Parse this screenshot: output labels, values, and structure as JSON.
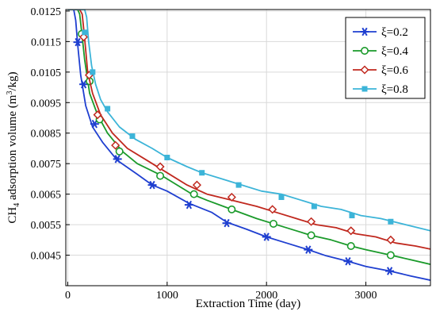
{
  "chart_data": {
    "type": "line",
    "title": "",
    "xlabel": "Extraction Time (day)",
    "ylabel": "CH4 adsorption volume (m3/kg)",
    "ylabel_parts": {
      "a": "CH",
      "sub": "4",
      "b": " adsorption volume (m",
      "sup": "3",
      "c": "/kg)"
    },
    "xlim": [
      -20,
      3650
    ],
    "ylim": [
      0.0035,
      0.01255
    ],
    "x_ticks": [
      0,
      1000,
      2000,
      3000
    ],
    "x_tick_labels": [
      "0",
      "1000",
      "2000",
      "3000"
    ],
    "y_ticks": [
      0.0045,
      0.0055,
      0.0065,
      0.0075,
      0.0085,
      0.0095,
      0.0105,
      0.0115,
      0.0125
    ],
    "y_tick_labels": [
      "0.0045",
      "0.0055",
      "0.0065",
      "0.0075",
      "0.0085",
      "0.0095",
      "0.0105",
      "0.0115",
      "0.0125"
    ],
    "grid": true,
    "legend_position": "top-right",
    "series": [
      {
        "name": "ξ=0.2",
        "color": "#1f3fd0",
        "marker": "star",
        "curve_x": [
          0,
          30,
          60,
          80,
          100,
          130,
          180,
          250,
          350,
          500,
          700,
          850,
          1000,
          1220,
          1450,
          1600,
          1800,
          2000,
          2200,
          2420,
          2600,
          2820,
          3000,
          3240,
          3450,
          3650
        ],
        "curve_y": [
          0.01255,
          0.01255,
          0.01255,
          0.0122,
          0.0114,
          0.0104,
          0.0094,
          0.0087,
          0.0082,
          0.0076,
          0.00715,
          0.0068,
          0.0066,
          0.0062,
          0.0059,
          0.00558,
          0.00535,
          0.0051,
          0.0049,
          0.00468,
          0.00448,
          0.0043,
          0.00413,
          0.00398,
          0.00382,
          0.00368
        ],
        "marker_x": [
          100,
          160,
          270,
          500,
          850,
          1220,
          1600,
          2000,
          2420,
          2820,
          3240
        ],
        "marker_y": [
          0.01148,
          0.0101,
          0.0088,
          0.00765,
          0.0068,
          0.00615,
          0.00555,
          0.0051,
          0.00468,
          0.0043,
          0.00398
        ]
      },
      {
        "name": "ξ=0.4",
        "color": "#1a9a2a",
        "marker": "circle",
        "curve_x": [
          0,
          60,
          100,
          120,
          140,
          170,
          220,
          300,
          400,
          550,
          700,
          950,
          1100,
          1250,
          1400,
          1650,
          1900,
          2050,
          2300,
          2450,
          2650,
          2850,
          3000,
          3250,
          3450,
          3650
        ],
        "curve_y": [
          0.01255,
          0.01255,
          0.01255,
          0.0124,
          0.0118,
          0.0109,
          0.0098,
          0.0091,
          0.0085,
          0.0079,
          0.0075,
          0.0071,
          0.0068,
          0.0065,
          0.0063,
          0.006,
          0.0057,
          0.00555,
          0.0053,
          0.00515,
          0.005,
          0.0048,
          0.00468,
          0.0045,
          0.00435,
          0.0042
        ],
        "marker_x": [
          140,
          220,
          320,
          520,
          930,
          1270,
          1650,
          2070,
          2450,
          2850,
          3250
        ],
        "marker_y": [
          0.01175,
          0.0102,
          0.00895,
          0.0079,
          0.0071,
          0.0065,
          0.006,
          0.00553,
          0.00515,
          0.0048,
          0.0045
        ]
      },
      {
        "name": "ξ=0.6",
        "color": "#c0281e",
        "marker": "diamond",
        "curve_x": [
          0,
          90,
          120,
          145,
          170,
          200,
          250,
          330,
          450,
          600,
          800,
          1000,
          1200,
          1400,
          1650,
          1900,
          2100,
          2300,
          2500,
          2700,
          2900,
          3100,
          3300,
          3500,
          3650
        ],
        "curve_y": [
          0.01255,
          0.01255,
          0.01255,
          0.0124,
          0.0116,
          0.0105,
          0.0098,
          0.0091,
          0.0085,
          0.008,
          0.0076,
          0.0072,
          0.0068,
          0.0065,
          0.0063,
          0.0061,
          0.0059,
          0.0057,
          0.0055,
          0.0054,
          0.0052,
          0.0051,
          0.0049,
          0.0048,
          0.0047
        ],
        "marker_x": [
          160,
          215,
          300,
          480,
          930,
          1300,
          1650,
          2060,
          2450,
          2850,
          3250
        ],
        "marker_y": [
          0.01165,
          0.0104,
          0.0091,
          0.0081,
          0.0074,
          0.0068,
          0.0064,
          0.006,
          0.0056,
          0.0053,
          0.005
        ]
      },
      {
        "name": "ξ=0.8",
        "color": "#3cb4d8",
        "marker": "square",
        "curve_x": [
          0,
          150,
          170,
          190,
          210,
          240,
          280,
          330,
          400,
          520,
          680,
          850,
          1000,
          1200,
          1350,
          1550,
          1750,
          1950,
          2150,
          2350,
          2550,
          2750,
          2950,
          3150,
          3400,
          3650
        ],
        "curve_y": [
          0.01255,
          0.01255,
          0.01255,
          0.0123,
          0.0115,
          0.0107,
          0.0101,
          0.0096,
          0.0092,
          0.0087,
          0.0083,
          0.008,
          0.0077,
          0.0074,
          0.0072,
          0.007,
          0.0068,
          0.0066,
          0.0065,
          0.0063,
          0.0061,
          0.006,
          0.0058,
          0.0057,
          0.0055,
          0.0053
        ],
        "marker_x": [
          170,
          250,
          400,
          650,
          1000,
          1350,
          1720,
          2150,
          2480,
          2860,
          3250
        ],
        "marker_y": [
          0.0118,
          0.0105,
          0.0093,
          0.0084,
          0.0077,
          0.0072,
          0.0068,
          0.0064,
          0.0061,
          0.0058,
          0.0056
        ]
      }
    ]
  }
}
